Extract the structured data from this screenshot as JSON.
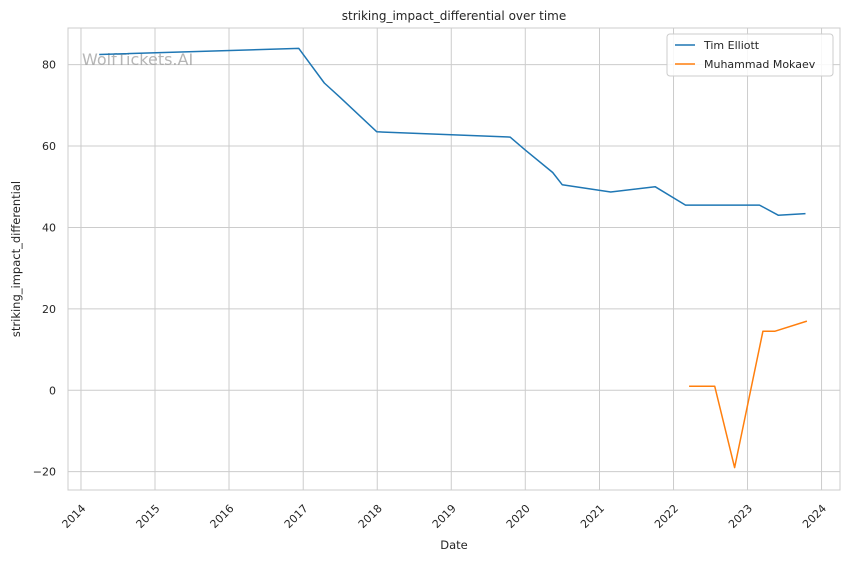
{
  "chart_data": {
    "type": "line",
    "title": "striking_impact_differential over time",
    "xlabel": "Date",
    "ylabel": "striking_impact_differential",
    "watermark": "WolfTickets.AI",
    "x_range": [
      "2013-10-29",
      "2024-04-01"
    ],
    "ylim": [
      -24.5,
      89
    ],
    "x_ticks": [
      "2014",
      "2015",
      "2016",
      "2017",
      "2018",
      "2019",
      "2020",
      "2021",
      "2022",
      "2023",
      "2024"
    ],
    "y_ticks": [
      -20,
      0,
      20,
      40,
      60,
      80
    ],
    "y_tick_labels": [
      "−20",
      "0",
      "20",
      "40",
      "60",
      "80"
    ],
    "grid": true,
    "legend_position": "top-right",
    "series": [
      {
        "name": "Tim Elliott",
        "color": "#1f77b4",
        "points": [
          [
            "2014-04-01",
            82.5
          ],
          [
            "2016-12-10",
            84.0
          ],
          [
            "2017-04-15",
            75.5
          ],
          [
            "2017-07-01",
            72.0
          ],
          [
            "2017-12-30",
            63.5
          ],
          [
            "2019-10-18",
            62.2
          ],
          [
            "2020-01-01",
            59.0
          ],
          [
            "2020-05-15",
            53.5
          ],
          [
            "2020-07-01",
            50.5
          ],
          [
            "2021-02-25",
            48.7
          ],
          [
            "2021-10-02",
            50.0
          ],
          [
            "2022-03-01",
            45.5
          ],
          [
            "2023-03-01",
            45.5
          ],
          [
            "2023-06-01",
            43.0
          ],
          [
            "2023-10-14",
            43.4
          ]
        ]
      },
      {
        "name": "Muhammad Mokaev",
        "color": "#ff7f0e",
        "points": [
          [
            "2022-03-19",
            1.0
          ],
          [
            "2022-07-23",
            1.0
          ],
          [
            "2022-10-29",
            -19.0
          ],
          [
            "2023-03-18",
            14.5
          ],
          [
            "2023-05-15",
            14.5
          ],
          [
            "2023-10-21",
            17.0
          ]
        ]
      }
    ]
  }
}
